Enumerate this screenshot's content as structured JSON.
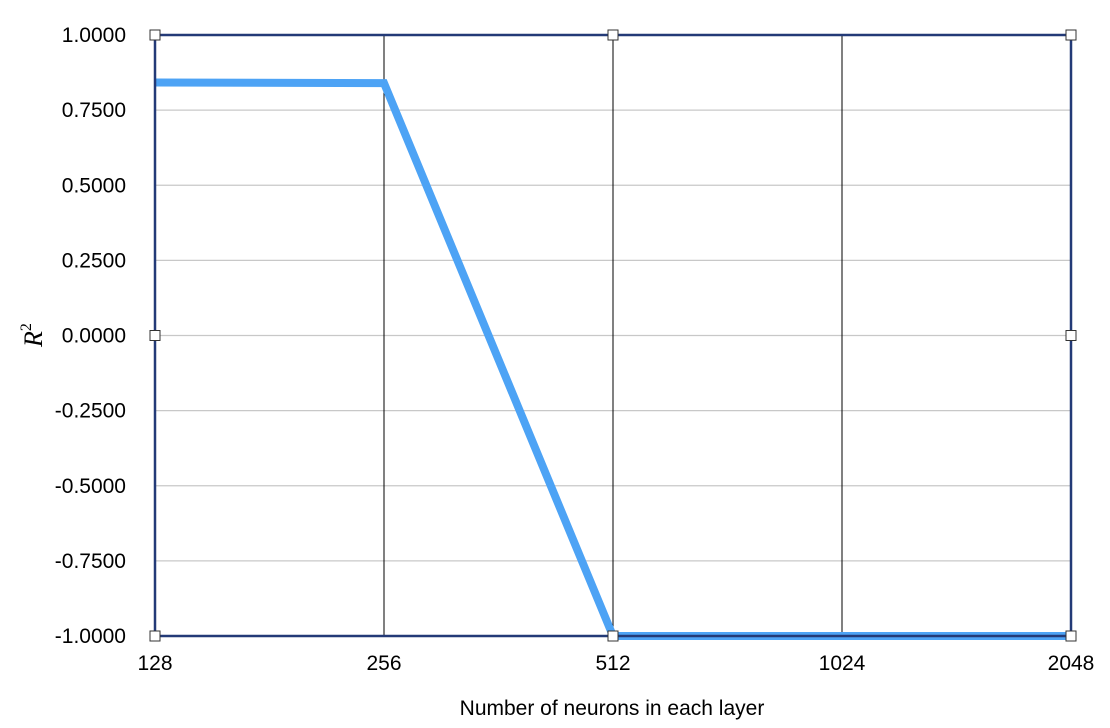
{
  "chart_data": {
    "type": "line",
    "title": "",
    "xlabel": "Number of neurons in each layer",
    "ylabel": "R",
    "ylabel_superscript": "2",
    "categories": [
      "128",
      "256",
      "512",
      "1024",
      "2048"
    ],
    "yticks": [
      "1.0000",
      "0.7500",
      "0.5000",
      "0.2500",
      "0.0000",
      "-0.2500",
      "-0.5000",
      "-0.7500",
      "-1.0000"
    ],
    "ylim": [
      -1,
      1
    ],
    "grid": true,
    "legend": "none",
    "series": [
      {
        "values": [
          0.842,
          0.84,
          -1.0,
          -1.0,
          -1.0
        ],
        "color": "#4da3f5"
      }
    ],
    "colors": {
      "frame": "#233a77",
      "grid": "#c8c8c8",
      "vertical_grid": "#000000"
    }
  }
}
